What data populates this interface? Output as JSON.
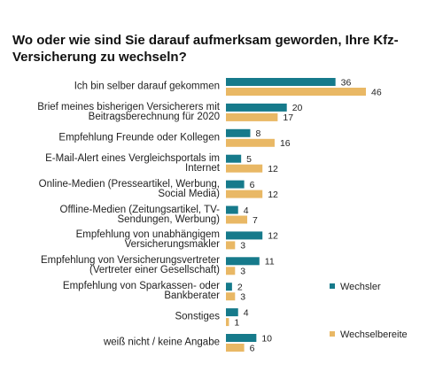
{
  "chart_data": {
    "type": "bar",
    "orientation": "horizontal",
    "title": "Wo oder wie sind Sie darauf aufmerksam geworden, Ihre Kfz-Versicherung zu wechseln?",
    "categories": [
      "Ich bin selber darauf gekommen",
      "Brief meines bisherigen Versicherers mit Beitragsberechnung für 2020",
      "Empfehlung Freunde oder Kollegen",
      "E-Mail-Alert eines Vergleichsportals im Internet",
      "Online-Medien (Presseartikel, Werbung, Social Media)",
      "Offline-Medien (Zeitungsartikel, TV-Sendungen, Werbung)",
      "Empfehlung von unabhängigem Versicherungsmakler",
      "Empfehlung von Versicherungsvertreter (Vertreter einer Gesellschaft)",
      "Empfehlung von Sparkassen- oder Bankberater",
      "Sonstiges",
      "weiß nicht / keine Angabe"
    ],
    "series": [
      {
        "name": "Wechsler",
        "color": "#167a8b",
        "values": [
          36,
          20,
          8,
          5,
          6,
          4,
          12,
          11,
          2,
          4,
          10
        ]
      },
      {
        "name": "Wechselbereite",
        "color": "#e9b865",
        "values": [
          46,
          17,
          16,
          12,
          12,
          7,
          3,
          3,
          3,
          1,
          6
        ]
      }
    ],
    "legend": "right"
  }
}
